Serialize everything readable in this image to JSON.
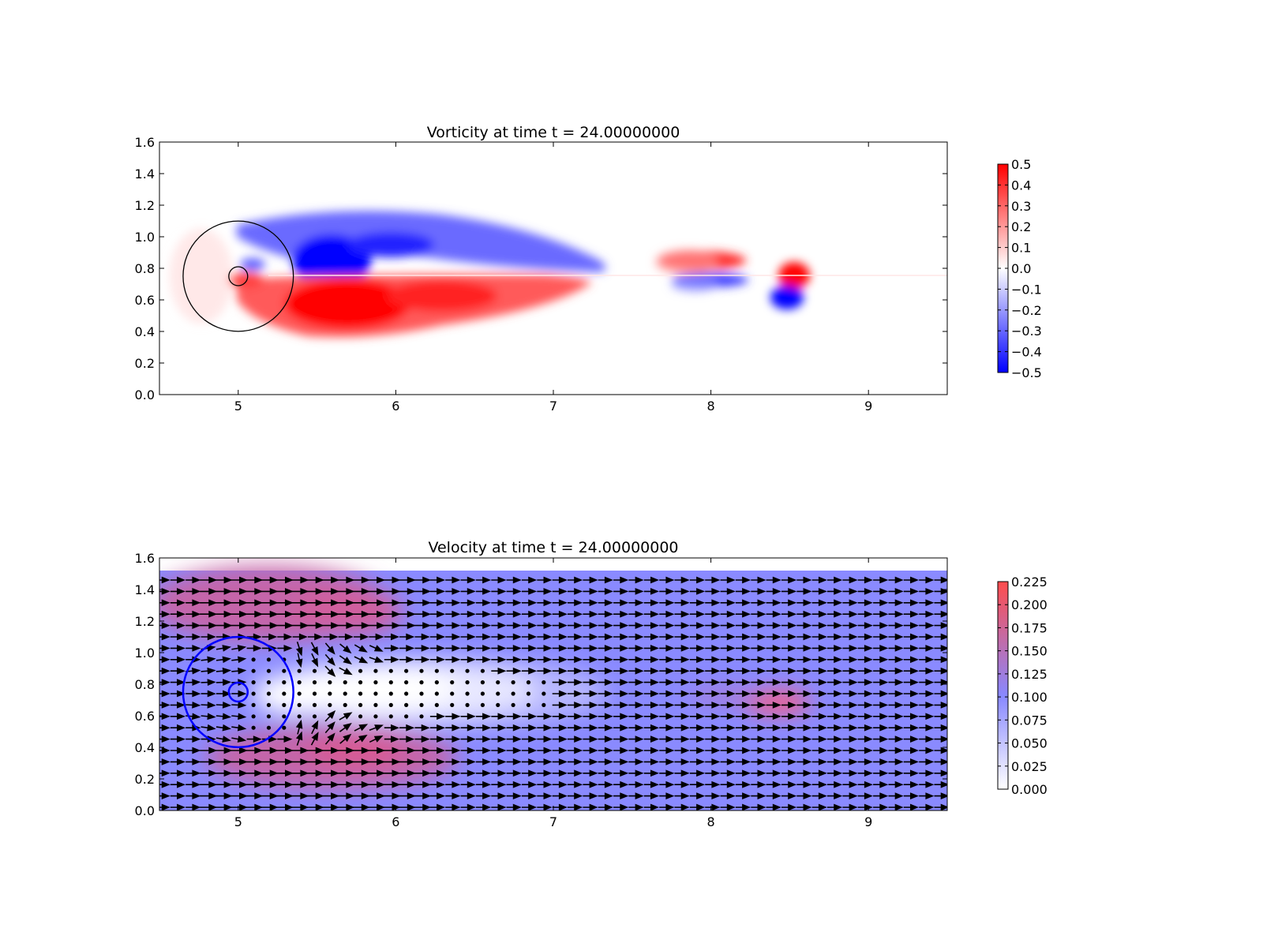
{
  "chart_data": [
    {
      "type": "heatmap",
      "title": "Vorticity at time t =    24.00000000",
      "xlim": [
        4.5,
        9.5
      ],
      "ylim": [
        0.0,
        1.6
      ],
      "x_ticks": [
        "5",
        "6",
        "7",
        "8",
        "9"
      ],
      "y_ticks": [
        "0.0",
        "0.2",
        "0.4",
        "0.6",
        "0.8",
        "1.0",
        "1.2",
        "1.4",
        "1.6"
      ],
      "colormap": "bwr",
      "colors": {
        "negative": "#0000ff",
        "zero": "#ffffff",
        "positive": "#ff0000"
      },
      "clim": [
        -0.5,
        0.5
      ],
      "colorbar_ticks": [
        "0.5",
        "0.4",
        "0.3",
        "0.2",
        "0.1",
        "0.0",
        "−0.1",
        "−0.2",
        "−0.3",
        "−0.4",
        "−0.5"
      ],
      "circles": [
        {
          "cx": 5.0,
          "cy": 0.75,
          "r": 0.06,
          "color": "#000000"
        },
        {
          "cx": 5.0,
          "cy": 0.75,
          "r": 0.35,
          "color": "#000000"
        }
      ],
      "features": [
        {
          "sign": "negative",
          "cx": 5.65,
          "cy": 0.93,
          "note": "upper shear layer"
        },
        {
          "sign": "positive",
          "cx": 5.65,
          "cy": 0.57,
          "note": "lower shear layer"
        },
        {
          "sign": "positive",
          "cx": 8.55,
          "cy": 0.74,
          "note": "shed vortex"
        },
        {
          "sign": "negative",
          "cx": 8.5,
          "cy": 0.6,
          "note": "shed vortex"
        }
      ]
    },
    {
      "type": "quiver",
      "title": "Velocity at time t =    24.00000000",
      "xlim": [
        4.5,
        9.5
      ],
      "ylim": [
        0.0,
        1.6
      ],
      "x_ticks": [
        "5",
        "6",
        "7",
        "8",
        "9"
      ],
      "y_ticks": [
        "0.0",
        "0.2",
        "0.4",
        "0.6",
        "0.8",
        "1.0",
        "1.2",
        "1.4",
        "1.6"
      ],
      "field_ylim": [
        0.0,
        1.52
      ],
      "colormap": "white-blue-red",
      "colors": {
        "low": "#ffffff",
        "mid": "#8888ff",
        "high": "#ff4d4d"
      },
      "clim": [
        0.0,
        0.225
      ],
      "colorbar_ticks": [
        "0.225",
        "0.200",
        "0.175",
        "0.150",
        "0.125",
        "0.100",
        "0.075",
        "0.050",
        "0.025",
        "0.000"
      ],
      "background_speed": 0.1,
      "circles": [
        {
          "cx": 5.0,
          "cy": 0.75,
          "r": 0.06,
          "color": "#0000ff"
        },
        {
          "cx": 5.0,
          "cy": 0.75,
          "r": 0.35,
          "color": "#0000ff"
        }
      ],
      "features": [
        {
          "level": "high",
          "cx": 5.7,
          "cy": 1.35,
          "note": "fast flow above cylinder"
        },
        {
          "level": "high",
          "cx": 5.7,
          "cy": 0.35,
          "note": "fast flow below cylinder"
        },
        {
          "level": "low",
          "cx": 6.2,
          "cy": 0.78,
          "note": "wake"
        },
        {
          "level": "high",
          "cx": 8.55,
          "cy": 0.69,
          "note": "wake jet"
        }
      ]
    }
  ]
}
